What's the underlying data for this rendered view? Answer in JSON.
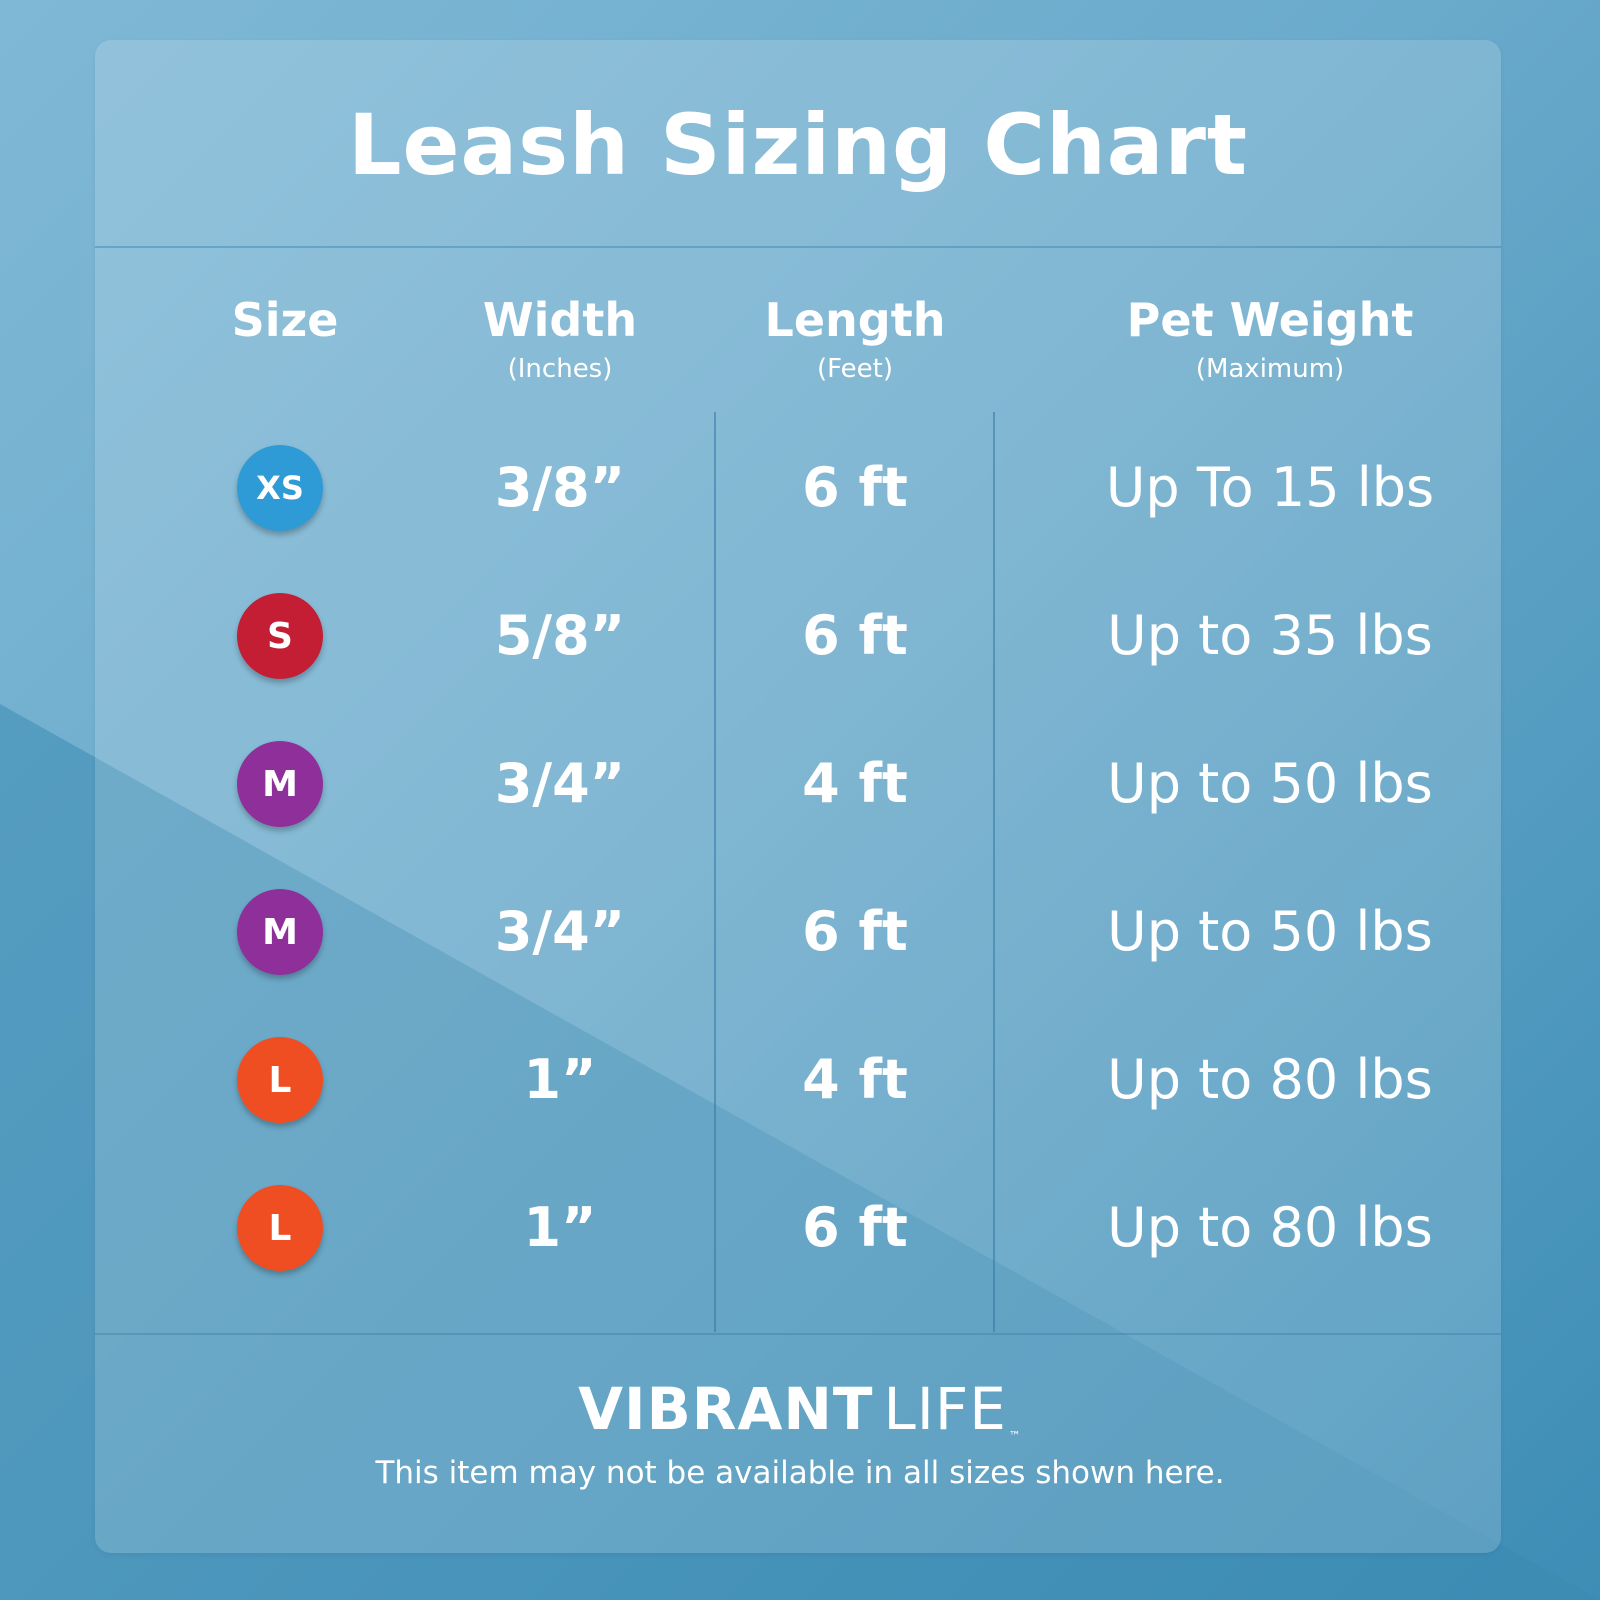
{
  "title": "Leash Sizing Chart",
  "headers": {
    "size": "Size",
    "width": {
      "main": "Width",
      "sub": "(Inches)"
    },
    "length": {
      "main": "Length",
      "sub": "(Feet)"
    },
    "weight": {
      "main": "Pet Weight",
      "sub": "(Maximum)"
    }
  },
  "rows": [
    {
      "size": "XS",
      "color": "#2e9bd6",
      "width": "3/8”",
      "length": "6 ft",
      "weight": "Up To 15 lbs"
    },
    {
      "size": "S",
      "color": "#c41e35",
      "width": "5/8”",
      "length": "6 ft",
      "weight": "Up to 35 lbs"
    },
    {
      "size": "M",
      "color": "#8e2f9a",
      "width": "3/4”",
      "length": "4 ft",
      "weight": "Up to 50 lbs"
    },
    {
      "size": "M",
      "color": "#8e2f9a",
      "width": "3/4”",
      "length": "6 ft",
      "weight": "Up to 50 lbs"
    },
    {
      "size": "L",
      "color": "#ef4e23",
      "width": "1”",
      "length": "4 ft",
      "weight": "Up to 80 lbs"
    },
    {
      "size": "L",
      "color": "#ef4e23",
      "width": "1”",
      "length": "6 ft",
      "weight": "Up to 80 lbs"
    }
  ],
  "brand": {
    "bold": "VIBRANT",
    "light": "LIFE",
    "tm": "™"
  },
  "note": "This item may not be available in all sizes shown here."
}
